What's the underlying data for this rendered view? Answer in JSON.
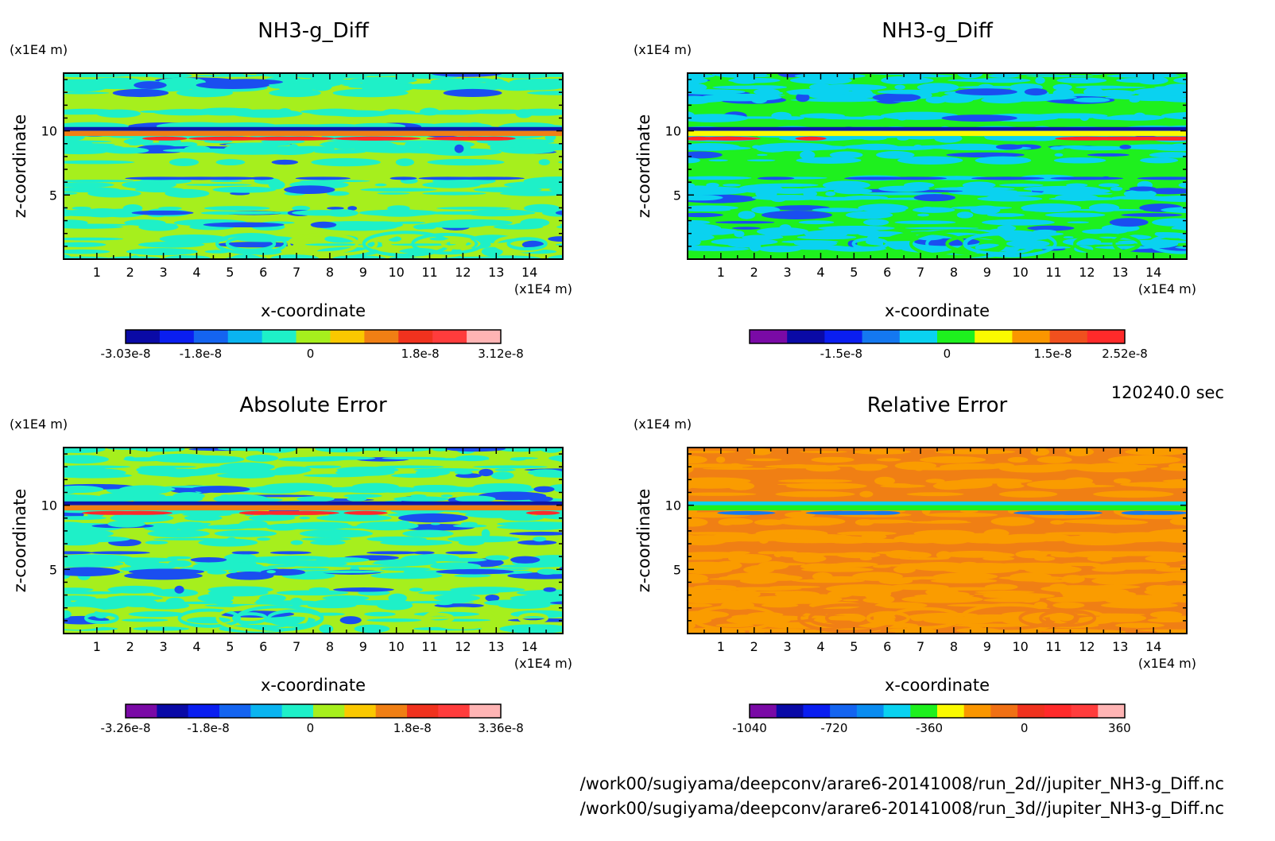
{
  "axis_unit": "(x1E4 m)",
  "time_label": "120240.0 sec",
  "footer_lines": [
    "/work00/sugiyama/deepconv/arare6-20141008/run_2d//jupiter_NH3-g_Diff.nc",
    "/work00/sugiyama/deepconv/arare6-20141008/run_3d//jupiter_NH3-g_Diff.nc"
  ],
  "chart_data": [
    {
      "type": "heatmap",
      "title": "NH3-g_Diff",
      "xlabel": "x-coordinate",
      "ylabel": "z-coordinate",
      "x_unit": "(x1E4 m)",
      "y_unit": "(x1E4 m)",
      "xlim": [
        0,
        15
      ],
      "ylim": [
        0,
        14.5
      ],
      "xticks": [
        "1",
        "2",
        "3",
        "4",
        "5",
        "6",
        "7",
        "8",
        "9",
        "10",
        "11",
        "12",
        "13",
        "14"
      ],
      "yticks": [
        "5",
        "10"
      ],
      "dominant_colors": [
        "#a6ef1d",
        "#1ef0c8"
      ],
      "band_colors": [
        "#1a4ef0",
        "#f07f14",
        "#0d18a8",
        "#ff2a2a"
      ],
      "colorbar": {
        "colors": [
          "#0a0aa6",
          "#0a1ef0",
          "#1464f0",
          "#0ab4f0",
          "#1ef0c8",
          "#a6ef1d",
          "#fac800",
          "#f07f14",
          "#f0321e",
          "#ff3c3c",
          "#ffb4b4"
        ],
        "tick_labels": [
          "-3.03e-8",
          "-1.8e-8",
          "0",
          "1.8e-8",
          "3.12e-8"
        ],
        "tick_values": [
          -3.03e-08,
          -1.8e-08,
          0,
          1.8e-08,
          3.12e-08
        ],
        "range": [
          -3.03e-08,
          3.12e-08
        ]
      }
    },
    {
      "type": "heatmap",
      "title": "NH3-g_Diff",
      "xlabel": "x-coordinate",
      "ylabel": "z-coordinate",
      "x_unit": "(x1E4 m)",
      "y_unit": "(x1E4 m)",
      "xlim": [
        0,
        15
      ],
      "ylim": [
        0,
        14.5
      ],
      "xticks": [
        "1",
        "2",
        "3",
        "4",
        "5",
        "6",
        "7",
        "8",
        "9",
        "10",
        "11",
        "12",
        "13",
        "14"
      ],
      "yticks": [
        "5",
        "10"
      ],
      "dominant_colors": [
        "#1ef01e",
        "#0ad2f0"
      ],
      "band_colors": [
        "#1a4ef0",
        "#fafa00",
        "#0d18a8",
        "#ff2a2a"
      ],
      "colorbar": {
        "colors": [
          "#7a0aa6",
          "#0a0aa6",
          "#0a1ef0",
          "#1478f0",
          "#0ad2f0",
          "#1ef01e",
          "#fafa00",
          "#fa9600",
          "#f0501e",
          "#ff2a2a"
        ],
        "tick_labels": [
          "-1.5e-8",
          "0",
          "1.5e-8",
          "2.52e-8"
        ],
        "tick_values": [
          -1.5e-08,
          0,
          1.5e-08,
          2.52e-08
        ],
        "range": [
          -2.8e-08,
          2.52e-08
        ]
      }
    },
    {
      "type": "heatmap",
      "title": "Absolute Error",
      "xlabel": "x-coordinate",
      "ylabel": "z-coordinate",
      "x_unit": "(x1E4 m)",
      "y_unit": "(x1E4 m)",
      "xlim": [
        0,
        15
      ],
      "ylim": [
        0,
        14.5
      ],
      "xticks": [
        "1",
        "2",
        "3",
        "4",
        "5",
        "6",
        "7",
        "8",
        "9",
        "10",
        "11",
        "12",
        "13",
        "14"
      ],
      "yticks": [
        "5",
        "10"
      ],
      "dominant_colors": [
        "#a6ef1d",
        "#1ef0c8"
      ],
      "band_colors": [
        "#1a4ef0",
        "#f07f14",
        "#0d18a8",
        "#ff2a2a"
      ],
      "colorbar": {
        "colors": [
          "#7a0aa6",
          "#0a0aa6",
          "#0a1ef0",
          "#1464f0",
          "#0ab4f0",
          "#1ef0c8",
          "#a6ef1d",
          "#fac800",
          "#f07f14",
          "#f0321e",
          "#ff3c3c",
          "#ffb4b4"
        ],
        "tick_labels": [
          "-3.26e-8",
          "-1.8e-8",
          "0",
          "1.8e-8",
          "3.36e-8"
        ],
        "tick_values": [
          -3.26e-08,
          -1.8e-08,
          0,
          1.8e-08,
          3.36e-08
        ],
        "range": [
          -3.26e-08,
          3.36e-08
        ]
      }
    },
    {
      "type": "heatmap",
      "title": "Relative Error",
      "xlabel": "x-coordinate",
      "ylabel": "z-coordinate",
      "x_unit": "(x1E4 m)",
      "y_unit": "(x1E4 m)",
      "xlim": [
        0,
        15
      ],
      "ylim": [
        0,
        14.5
      ],
      "xticks": [
        "1",
        "2",
        "3",
        "4",
        "5",
        "6",
        "7",
        "8",
        "9",
        "10",
        "11",
        "12",
        "13",
        "14"
      ],
      "yticks": [
        "5",
        "10"
      ],
      "dominant_colors": [
        "#f07f14",
        "#fa9c00"
      ],
      "band_colors": [
        "#fa9c00",
        "#1ef01e",
        "#0ad2f0",
        "#1478f0"
      ],
      "colorbar": {
        "colors": [
          "#7a0aa6",
          "#0a0aa6",
          "#0a1ef0",
          "#1464f0",
          "#0a8cf0",
          "#0ad2f0",
          "#1ef01e",
          "#fafa00",
          "#fa9600",
          "#f07014",
          "#f0321e",
          "#ff2a2a",
          "#ff3c3c",
          "#ffb4b4"
        ],
        "tick_labels": [
          "-1040",
          "-720",
          "-360",
          "0",
          "360"
        ],
        "tick_values": [
          -1040,
          -720,
          -360,
          0,
          360
        ],
        "range": [
          -1040,
          380
        ]
      }
    }
  ]
}
